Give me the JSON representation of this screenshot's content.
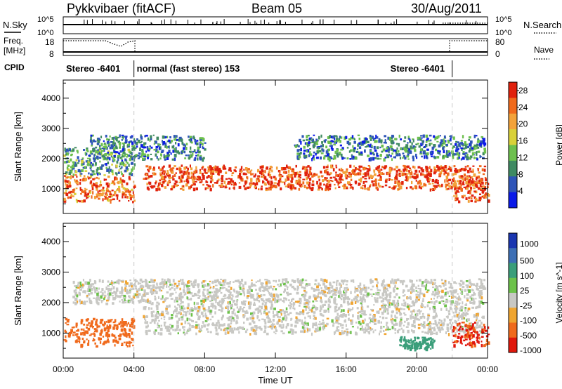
{
  "header": {
    "station": "Pykkvibaer (fitACF)",
    "beam": "Beam 05",
    "date": "30/Aug/2011"
  },
  "strips": {
    "nsky_label": "N.Sky",
    "nsky_ticks": [
      "10^5",
      "10^0"
    ],
    "nsearch_label": "N.Search",
    "nsearch_ticks": [
      "10^5",
      "10^0"
    ],
    "freq_label_1": "Freq.",
    "freq_label_2": "[MHz]",
    "freq_ticks": [
      "18",
      "8"
    ],
    "nave_label": "Nave",
    "nave_ticks": [
      "80",
      "0"
    ],
    "cpid_label": "CPID",
    "cpid_segments": [
      {
        "label": "Stereo -6401",
        "start": 0.0,
        "end": 4.0
      },
      {
        "label": "normal (fast stereo) 153",
        "start": 4.0,
        "end": 22.0
      },
      {
        "label": "Stereo -6401",
        "start": 22.0,
        "end": 24.0
      }
    ]
  },
  "colors": {
    "power_scale": [
      "#0a1ae8",
      "#2f55b8",
      "#3f8a62",
      "#6dc04e",
      "#d9d13a",
      "#f2a23a",
      "#f06a1c",
      "#e0210d"
    ],
    "velocity_scale": [
      "#1a36b0",
      "#3d6fb5",
      "#3a9e7a",
      "#6cc24a",
      "#c8c8c4",
      "#f0a530",
      "#f06a1c",
      "#e0180c"
    ],
    "ground_scatter": "#c8c8c4",
    "accent_dashed": "#c8c8c8"
  },
  "chart_data": [
    {
      "type": "heatmap",
      "title": "",
      "xlabel": "Time UT",
      "ylabel": "Slant Range [km]",
      "xlim": [
        0,
        24
      ],
      "ylim": [
        180,
        4600
      ],
      "x_tick_labels": [
        "00:00",
        "04:00",
        "08:00",
        "12:00",
        "16:00",
        "20:00",
        "00:00"
      ],
      "y_ticks": [
        1000,
        2000,
        3000,
        4000
      ],
      "colorbar": {
        "label": "Power [dB]",
        "ticks": [
          4,
          8,
          12,
          16,
          20,
          24,
          28
        ],
        "range": [
          0,
          30
        ]
      },
      "dashed_lines_hours": [
        4.0,
        22.0
      ],
      "bands": [
        {
          "t": [
            0.0,
            4.0
          ],
          "range": [
            600,
            1500
          ],
          "value": 24
        },
        {
          "t": [
            0.0,
            4.0
          ],
          "range": [
            1500,
            2400
          ],
          "value": 10
        },
        {
          "t": [
            4.5,
            23.8
          ],
          "range": [
            1000,
            1800
          ],
          "value": 26
        },
        {
          "t": [
            1.5,
            8.0
          ],
          "range": [
            2000,
            2800
          ],
          "value": 8
        },
        {
          "t": [
            13.0,
            23.8
          ],
          "range": [
            2000,
            2800
          ],
          "value": 8
        },
        {
          "t": [
            22.0,
            24.0
          ],
          "range": [
            600,
            1400
          ],
          "value": 26
        }
      ]
    },
    {
      "type": "heatmap",
      "title": "",
      "xlabel": "Time UT",
      "ylabel": "Slant Range [km]",
      "xlim": [
        0,
        24
      ],
      "ylim": [
        180,
        4600
      ],
      "x_tick_labels": [
        "00:00",
        "04:00",
        "08:00",
        "12:00",
        "16:00",
        "20:00",
        "00:00"
      ],
      "y_ticks": [
        1000,
        2000,
        3000,
        4000
      ],
      "colorbar": {
        "label": "Velocity [m s^-1]",
        "ticks": [
          1000,
          500,
          100,
          25,
          -25,
          -100,
          -500,
          -1000
        ]
      },
      "dashed_lines_hours": [
        4.0,
        22.0
      ],
      "bands": [
        {
          "t": [
            0.0,
            4.0
          ],
          "range": [
            600,
            1500
          ],
          "value": -300
        },
        {
          "t": [
            4.5,
            23.8
          ],
          "range": [
            1000,
            2000
          ],
          "value": 0
        },
        {
          "t": [
            0.5,
            23.8
          ],
          "range": [
            2000,
            2800
          ],
          "value": 0
        },
        {
          "t": [
            19.0,
            21.0
          ],
          "range": [
            500,
            900
          ],
          "value": 300
        },
        {
          "t": [
            22.0,
            24.0
          ],
          "range": [
            600,
            1400
          ],
          "value": -600
        }
      ]
    }
  ]
}
